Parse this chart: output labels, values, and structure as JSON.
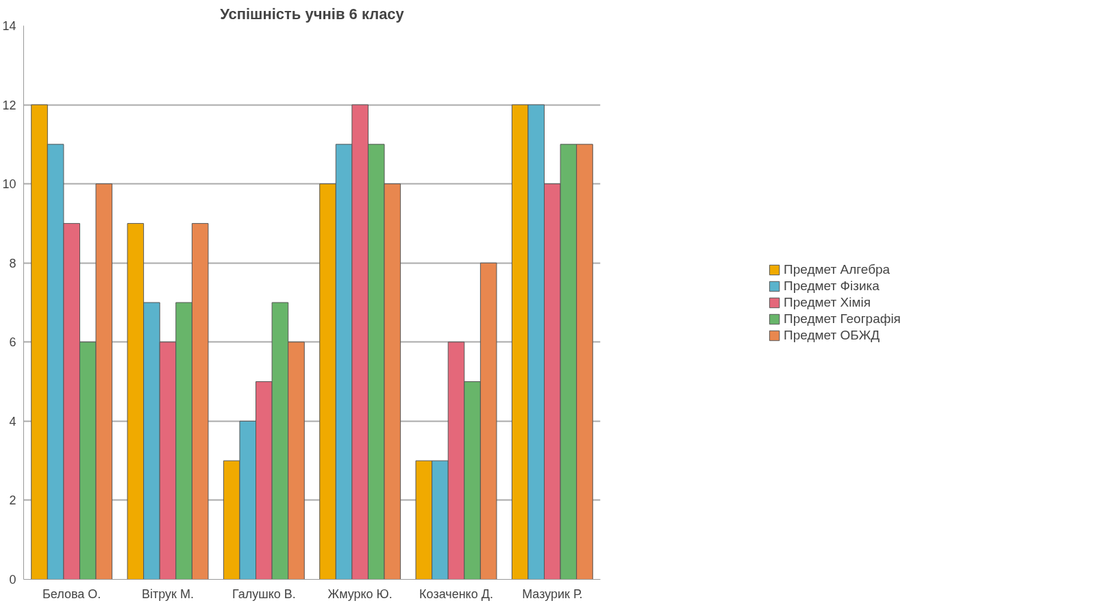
{
  "chart_data": {
    "type": "bar",
    "title": "Успішність учнів 6 класу",
    "categories": [
      "Белова О.",
      "Вітрук М.",
      "Галушко В.",
      "Жмурко Ю.",
      "Козаченко Д.",
      "Мазурик Р."
    ],
    "series": [
      {
        "name": "Предмет Алгебра",
        "color": "#f0aa00",
        "values": [
          12,
          9,
          3,
          10,
          3,
          12
        ]
      },
      {
        "name": "Предмет Фізика",
        "color": "#5ab3cc",
        "values": [
          11,
          7,
          4,
          11,
          3,
          12
        ]
      },
      {
        "name": "Предмет Хімія",
        "color": "#e4687a",
        "values": [
          9,
          6,
          5,
          12,
          6,
          10
        ]
      },
      {
        "name": "Предмет Географія",
        "color": "#68b56a",
        "values": [
          6,
          7,
          7,
          11,
          5,
          11
        ]
      },
      {
        "name": "Предмет ОБЖД",
        "color": "#e8874f",
        "values": [
          10,
          9,
          6,
          10,
          8,
          11
        ]
      }
    ],
    "ylim": [
      0,
      14
    ],
    "yticks": [
      0,
      2,
      4,
      6,
      8,
      10,
      12,
      14
    ],
    "grid": "y",
    "legend": "right"
  }
}
